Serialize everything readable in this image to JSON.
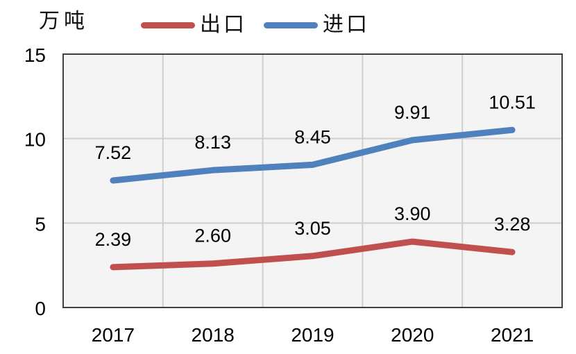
{
  "chart_data": {
    "type": "line",
    "unit": "万吨",
    "categories": [
      "2017",
      "2018",
      "2019",
      "2020",
      "2021"
    ],
    "series": [
      {
        "name": "出口",
        "color": "#C0504D",
        "values": [
          2.39,
          2.6,
          3.05,
          3.9,
          3.28
        ]
      },
      {
        "name": "进口",
        "color": "#4F81BD",
        "values": [
          7.52,
          8.13,
          8.45,
          9.91,
          10.51
        ]
      }
    ],
    "ylim": [
      0,
      15
    ],
    "yticks": [
      0,
      5,
      10,
      15
    ],
    "grid": true,
    "data_labels": true,
    "label_decimals": 2,
    "legend_position": "top",
    "xlabel": "",
    "ylabel": "万吨"
  },
  "colors": {
    "export_line": "#C0504D",
    "import_line": "#4F81BD",
    "gridline": "#CFCFCF",
    "plot_border": "#3F3F3F",
    "plot_background": "#F4F4F4",
    "text": "#000000"
  }
}
